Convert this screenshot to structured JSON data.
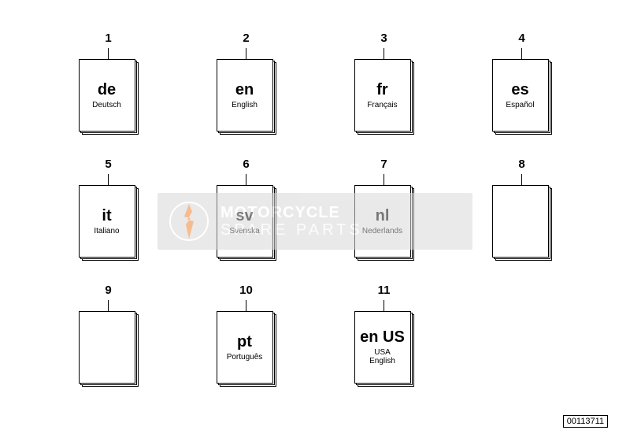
{
  "part_number": "00113711",
  "watermark": {
    "line1": "MOTORCYCLE",
    "line2": "SPARE PARTS",
    "bg_color": "#d8d8d8",
    "text_color": "#ffffff",
    "accent_color": "#f47c20"
  },
  "items": [
    {
      "num": "1",
      "code": "de",
      "lang": "Deutsch",
      "has_text": true
    },
    {
      "num": "2",
      "code": "en",
      "lang": "English",
      "has_text": true
    },
    {
      "num": "3",
      "code": "fr",
      "lang": "Français",
      "has_text": true
    },
    {
      "num": "4",
      "code": "es",
      "lang": "Español",
      "has_text": true
    },
    {
      "num": "5",
      "code": "it",
      "lang": "Italiano",
      "has_text": true
    },
    {
      "num": "6",
      "code": "sv",
      "lang": "Svenska",
      "has_text": true
    },
    {
      "num": "7",
      "code": "nl",
      "lang": "Nederlands",
      "has_text": true
    },
    {
      "num": "8",
      "code": "",
      "lang": "",
      "has_text": false
    },
    {
      "num": "9",
      "code": "",
      "lang": "",
      "has_text": false
    },
    {
      "num": "10",
      "code": "pt",
      "lang": "Português",
      "has_text": true
    },
    {
      "num": "11",
      "code": "en US",
      "lang": "USA\nEnglish",
      "has_text": true
    }
  ],
  "style": {
    "page_border_color": "#000000",
    "page_bg": "#ffffff",
    "num_fontsize": 15,
    "code_fontsize": 20,
    "lang_fontsize": 10,
    "canvas_bg": "#ffffff"
  }
}
